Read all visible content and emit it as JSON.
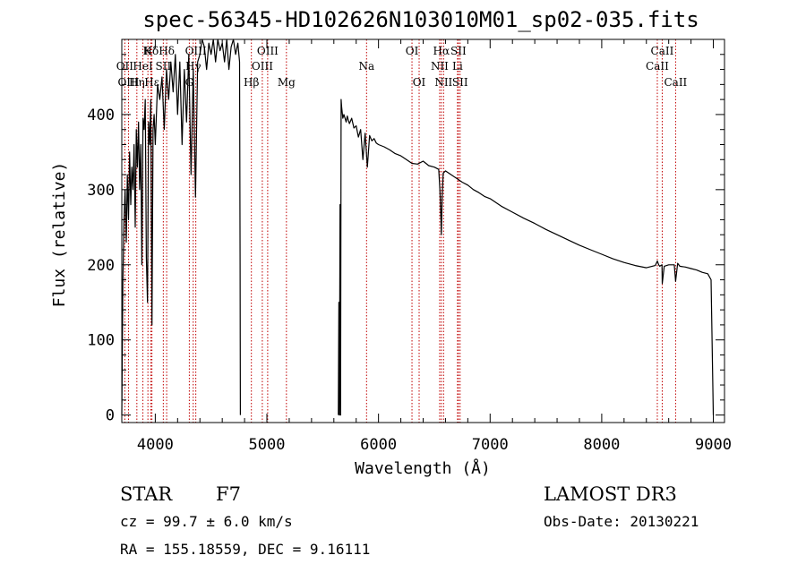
{
  "chart_data": {
    "type": "line",
    "title": "spec-56345-HD102626N103010M01_sp02-035.fits",
    "xlabel": "Wavelength (Å)",
    "ylabel": "Flux (relative)",
    "xlim": [
      3700,
      9100
    ],
    "ylim": [
      -10,
      500
    ],
    "xticks": [
      4000,
      5000,
      6000,
      7000,
      8000,
      9000
    ],
    "yticks": [
      0,
      100,
      200,
      300,
      400
    ],
    "series": [
      {
        "name": "flux",
        "segments": [
          {
            "x": [
              3700,
              3710,
              3720,
              3730,
              3740,
              3750,
              3760,
              3770,
              3780,
              3790,
              3800,
              3810,
              3820,
              3830,
              3840,
              3850,
              3860,
              3870,
              3880,
              3890,
              3900,
              3910,
              3920,
              3930,
              3940,
              3950,
              3960,
              3970,
              3980,
              3990,
              4000,
              4020,
              4040,
              4060,
              4080,
              4100,
              4120,
              4140,
              4160,
              4180,
              4200,
              4220,
              4240,
              4260,
              4280,
              4300,
              4320,
              4340,
              4360,
              4380,
              4400,
              4420,
              4440,
              4460,
              4480,
              4500,
              4520,
              4540,
              4560,
              4580,
              4600,
              4620,
              4640,
              4660,
              4680,
              4700,
              4720,
              4740,
              4755,
              4760,
              4762
            ],
            "y": [
              0,
              180,
              260,
              300,
              230,
              320,
              260,
              350,
              280,
              330,
              300,
              360,
              250,
              380,
              330,
              390,
              300,
              360,
              200,
              395,
              380,
              420,
              210,
              150,
              390,
              360,
              420,
              120,
              380,
              400,
              360,
              440,
              420,
              450,
              380,
              460,
              420,
              470,
              430,
              480,
              400,
              470,
              360,
              460,
              390,
              480,
              320,
              460,
              290,
              470,
              480,
              500,
              490,
              460,
              495,
              480,
              500,
              470,
              500,
              485,
              495,
              470,
              500,
              460,
              490,
              500,
              480,
              495,
              470,
              200,
              0
            ]
          },
          {
            "x": [
              5640,
              5645,
              5650,
              5655,
              5660,
              5665,
              5670,
              5680,
              5690,
              5700,
              5710,
              5720,
              5730,
              5740,
              5760,
              5780,
              5800,
              5820,
              5840,
              5860,
              5880,
              5900,
              5920,
              5940,
              5960,
              5980,
              6000,
              6050,
              6100,
              6150,
              6200,
              6250,
              6300,
              6350,
              6400,
              6450,
              6500,
              6540,
              6550,
              6560,
              6563,
              6570,
              6580,
              6600,
              6650,
              6700,
              6750,
              6800,
              6850,
              6900,
              6950,
              7000,
              7100,
              7200,
              7300,
              7400,
              7500,
              7600,
              7700,
              7800,
              7900,
              8000,
              8100,
              8200,
              8300,
              8400,
              8480,
              8498,
              8510,
              8520,
              8540,
              8542,
              8560,
              8600,
              8650,
              8662,
              8680,
              8700,
              8750,
              8800,
              8850,
              8900,
              8950,
              8980,
              9000
            ],
            "y": [
              0,
              150,
              0,
              280,
              0,
              420,
              410,
              395,
              400,
              395,
              390,
              398,
              392,
              388,
              395,
              382,
              385,
              370,
              380,
              340,
              375,
              330,
              372,
              365,
              368,
              362,
              360,
              357,
              353,
              348,
              345,
              340,
              335,
              334,
              338,
              332,
              330,
              327,
              300,
              260,
              240,
              290,
              322,
              325,
              320,
              315,
              310,
              306,
              300,
              296,
              291,
              288,
              278,
              270,
              262,
              255,
              247,
              240,
              233,
              226,
              220,
              214,
              208,
              203,
              199,
              196,
              199,
              205,
              200,
              198,
              200,
              175,
              198,
              200,
              200,
              178,
              202,
              198,
              197,
              195,
              193,
              190,
              188,
              180,
              0
            ]
          }
        ]
      }
    ],
    "lines": {
      "top": [
        {
          "label": "Hδ",
          "x": 3960,
          "row": 1
        },
        {
          "label": "K",
          "x": 3934,
          "row": 1
        },
        {
          "label": "Hδ",
          "x": 4102,
          "row": 1
        },
        {
          "label": "OIII",
          "x": 4363,
          "row": 1
        },
        {
          "label": "OIII",
          "x": 5007,
          "row": 1
        },
        {
          "label": "OI",
          "x": 6300,
          "row": 1
        },
        {
          "label": "Hα",
          "x": 6563,
          "row": 1
        },
        {
          "label": "SII",
          "x": 6716,
          "row": 1
        },
        {
          "label": "CaII",
          "x": 8542,
          "row": 1
        },
        {
          "label": "OII",
          "x": 3727,
          "row": 2
        },
        {
          "label": "HeI",
          "x": 3889,
          "row": 2
        },
        {
          "label": "SII",
          "x": 4072,
          "row": 2
        },
        {
          "label": "Hγ",
          "x": 4340,
          "row": 2
        },
        {
          "label": "OIII",
          "x": 4959,
          "row": 2
        },
        {
          "label": "Na",
          "x": 5893,
          "row": 2
        },
        {
          "label": "NII",
          "x": 6548,
          "row": 2
        },
        {
          "label": "Li",
          "x": 6708,
          "row": 2
        },
        {
          "label": "CaII",
          "x": 8498,
          "row": 2
        },
        {
          "label": "OIII",
          "x": 3760,
          "row": 3
        },
        {
          "label": "Hη",
          "x": 3835,
          "row": 3
        },
        {
          "label": "Hε",
          "x": 3970,
          "row": 3
        },
        {
          "label": "G",
          "x": 4305,
          "row": 3
        },
        {
          "label": "Hβ",
          "x": 4861,
          "row": 3
        },
        {
          "label": "Mg",
          "x": 5175,
          "row": 3
        },
        {
          "label": "OI",
          "x": 6364,
          "row": 3
        },
        {
          "label": "NII",
          "x": 6583,
          "row": 3
        },
        {
          "label": "SII",
          "x": 6731,
          "row": 3
        },
        {
          "label": "CaII",
          "x": 8662,
          "row": 3
        }
      ],
      "marker_x": [
        3727,
        3760,
        3835,
        3889,
        3934,
        3960,
        3970,
        4072,
        4102,
        4305,
        4340,
        4363,
        4861,
        4959,
        5007,
        5175,
        5893,
        6300,
        6364,
        6548,
        6563,
        6583,
        6708,
        6716,
        6731,
        8498,
        8542,
        8662
      ]
    }
  },
  "info": {
    "class": "STAR",
    "subclass": "F7",
    "survey": "LAMOST DR3",
    "cz": "cz = 99.7 ± 6.0 km/s",
    "obs_date": "Obs-Date: 20130221",
    "radec": "RA = 155.18559, DEC =   9.16111"
  },
  "colors": {
    "axis": "#000000",
    "spectrum": "#000000",
    "marker": "#c00000"
  }
}
